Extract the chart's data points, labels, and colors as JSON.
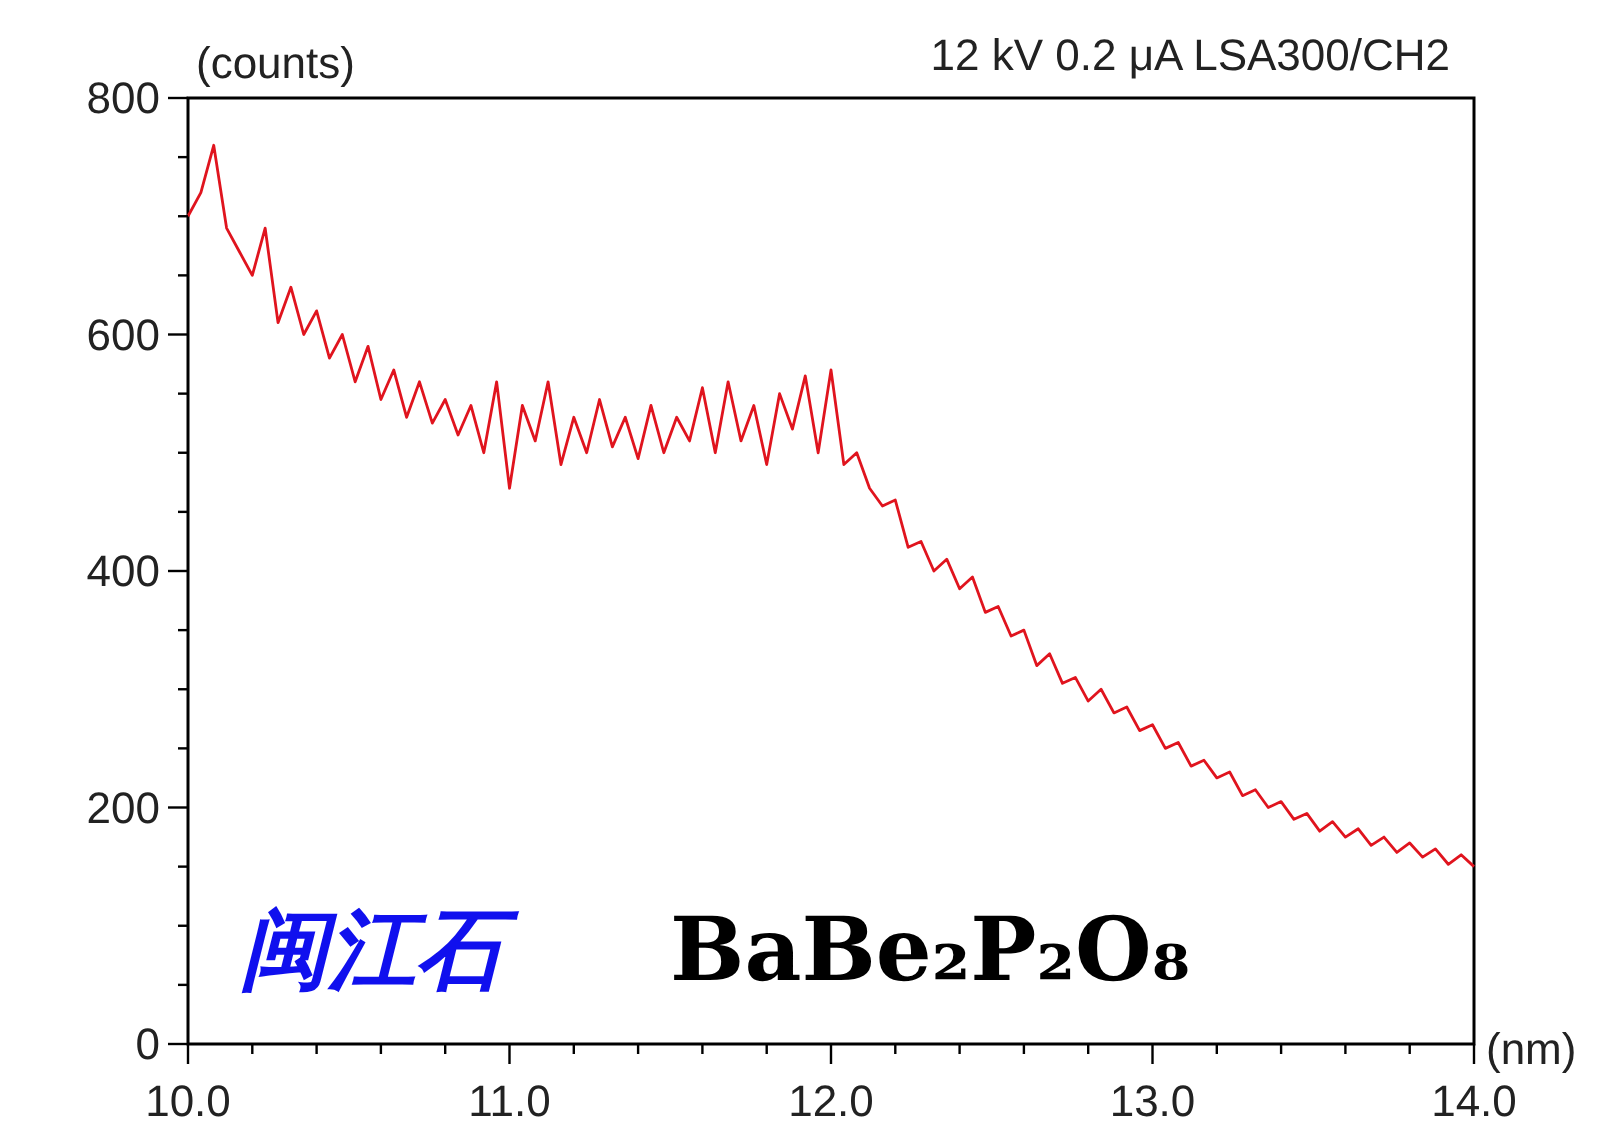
{
  "chart_data": {
    "type": "line",
    "title": "12 kV 0.2 μA LSA300/CH2",
    "xlabel": "(nm)",
    "ylabel": "(counts)",
    "annotations": [
      "闽江石",
      "BaBe₂P₂O₈"
    ],
    "x": [
      10.0,
      10.04,
      10.08,
      10.12,
      10.16,
      10.2,
      10.24,
      10.28,
      10.32,
      10.36,
      10.4,
      10.44,
      10.48,
      10.52,
      10.56,
      10.6,
      10.64,
      10.68,
      10.72,
      10.76,
      10.8,
      10.84,
      10.88,
      10.92,
      10.96,
      11.0,
      11.04,
      11.08,
      11.12,
      11.16,
      11.2,
      11.24,
      11.28,
      11.32,
      11.36,
      11.4,
      11.44,
      11.48,
      11.52,
      11.56,
      11.6,
      11.64,
      11.68,
      11.72,
      11.76,
      11.8,
      11.84,
      11.88,
      11.92,
      11.96,
      12.0,
      12.04,
      12.08,
      12.12,
      12.16,
      12.2,
      12.24,
      12.28,
      12.32,
      12.36,
      12.4,
      12.44,
      12.48,
      12.52,
      12.56,
      12.6,
      12.64,
      12.68,
      12.72,
      12.76,
      12.8,
      12.84,
      12.88,
      12.92,
      12.96,
      13.0,
      13.04,
      13.08,
      13.12,
      13.16,
      13.2,
      13.24,
      13.28,
      13.32,
      13.36,
      13.4,
      13.44,
      13.48,
      13.52,
      13.56,
      13.6,
      13.64,
      13.68,
      13.72,
      13.76,
      13.8,
      13.84,
      13.88,
      13.92,
      13.96,
      14.0
    ],
    "series": [
      {
        "color": "#e0141e",
        "values": [
          700,
          720,
          760,
          690,
          670,
          650,
          690,
          610,
          640,
          600,
          620,
          580,
          600,
          560,
          590,
          545,
          570,
          530,
          560,
          525,
          545,
          515,
          540,
          500,
          560,
          470,
          540,
          510,
          560,
          490,
          530,
          500,
          545,
          505,
          530,
          495,
          540,
          500,
          530,
          510,
          555,
          500,
          560,
          510,
          540,
          490,
          550,
          520,
          565,
          500,
          570,
          490,
          500,
          470,
          455,
          460,
          420,
          425,
          400,
          410,
          385,
          395,
          365,
          370,
          345,
          350,
          320,
          330,
          305,
          310,
          290,
          300,
          280,
          285,
          265,
          270,
          250,
          255,
          235,
          240,
          225,
          230,
          210,
          215,
          200,
          205,
          190,
          195,
          180,
          188,
          175,
          182,
          168,
          175,
          162,
          170,
          158,
          165,
          152,
          160,
          150
        ]
      }
    ],
    "xlim": [
      10.0,
      14.0
    ],
    "xticks": [
      {
        "value": 10,
        "label": "10.0"
      },
      {
        "value": 10.2,
        "label": null
      },
      {
        "value": 10.4,
        "label": null
      },
      {
        "value": 10.6,
        "label": null
      },
      {
        "value": 10.8,
        "label": null
      },
      {
        "value": 11,
        "label": "11.0"
      },
      {
        "value": 11.2,
        "label": null
      },
      {
        "value": 11.4,
        "label": null
      },
      {
        "value": 11.6,
        "label": null
      },
      {
        "value": 11.8,
        "label": null
      },
      {
        "value": 12,
        "label": "12.0"
      },
      {
        "value": 12.2,
        "label": null
      },
      {
        "value": 12.4,
        "label": null
      },
      {
        "value": 12.6,
        "label": null
      },
      {
        "value": 12.8,
        "label": null
      },
      {
        "value": 13,
        "label": "13.0"
      },
      {
        "value": 13.2,
        "label": null
      },
      {
        "value": 13.4,
        "label": null
      },
      {
        "value": 13.6,
        "label": null
      },
      {
        "value": 13.8,
        "label": null
      },
      {
        "value": 14,
        "label": "14.0"
      }
    ],
    "ylim": [
      0,
      800
    ],
    "yticks": [
      0,
      {
        "value": 50,
        "label": null
      },
      {
        "value": 100,
        "label": null
      },
      {
        "value": 150,
        "label": null
      },
      200,
      {
        "value": 250,
        "label": null
      },
      {
        "value": 300,
        "label": null
      },
      {
        "value": 350,
        "label": null
      },
      400,
      {
        "value": 450,
        "label": null
      },
      {
        "value": 500,
        "label": null
      },
      {
        "value": 550,
        "label": null
      },
      600,
      {
        "value": 650,
        "label": null
      },
      {
        "value": 700,
        "label": null
      },
      {
        "value": 750,
        "label": null
      },
      800
    ],
    "grid": false,
    "marker": "none",
    "line_style": "solid"
  }
}
